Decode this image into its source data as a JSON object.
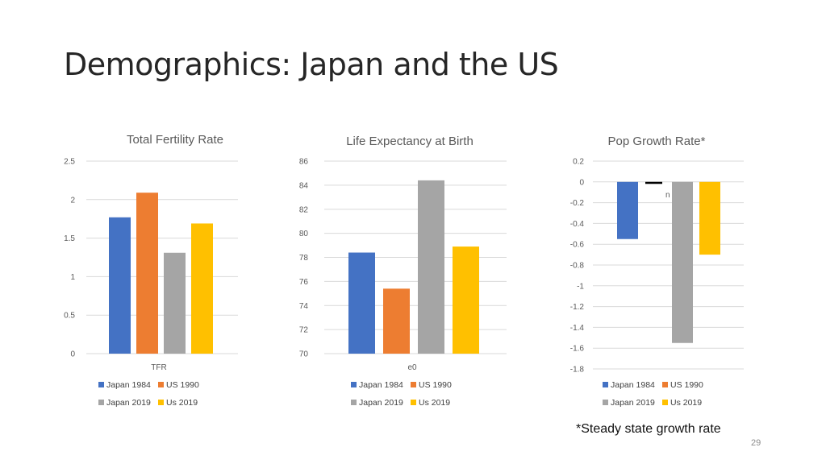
{
  "slide": {
    "title": "Demographics: Japan and the US",
    "footnote": "*Steady state growth rate",
    "page_number": "29"
  },
  "chart_data": [
    {
      "type": "bar",
      "title": "Total Fertility Rate",
      "categories": [
        "TFR"
      ],
      "series": [
        {
          "name": "Japan 1984",
          "values": [
            1.77
          ],
          "color": "#4472C4"
        },
        {
          "name": "US 1990",
          "values": [
            2.09
          ],
          "color": "#ED7D31"
        },
        {
          "name": "Japan 2019",
          "values": [
            1.31
          ],
          "color": "#A5A5A5"
        },
        {
          "name": "Us 2019",
          "values": [
            1.69
          ],
          "color": "#FFC000"
        }
      ],
      "ylim": [
        0,
        2.5
      ],
      "yticks": [
        "0",
        "0.5",
        "1",
        "1.5",
        "2",
        "2.5"
      ],
      "grid": true,
      "legend": "bottom"
    },
    {
      "type": "bar",
      "title": "Life Expectancy at Birth",
      "categories": [
        "e0"
      ],
      "series": [
        {
          "name": "Japan 1984",
          "values": [
            78.4
          ],
          "color": "#4472C4"
        },
        {
          "name": "US 1990",
          "values": [
            75.4
          ],
          "color": "#ED7D31"
        },
        {
          "name": "Japan 2019",
          "values": [
            84.4
          ],
          "color": "#A5A5A5"
        },
        {
          "name": "Us 2019",
          "values": [
            78.9
          ],
          "color": "#FFC000"
        }
      ],
      "ylim": [
        70,
        86
      ],
      "yticks": [
        "70",
        "72",
        "74",
        "76",
        "78",
        "80",
        "82",
        "84",
        "86"
      ],
      "grid": true,
      "legend": "bottom"
    },
    {
      "type": "bar",
      "title": "Pop Growth Rate*",
      "categories": [
        ""
      ],
      "series": [
        {
          "name": "Japan 1984",
          "values": [
            -0.55
          ],
          "color": "#4472C4"
        },
        {
          "name": "US 1990",
          "values": [
            0.0
          ],
          "color": "#ED7D31"
        },
        {
          "name": "Japan 2019",
          "values": [
            -1.55
          ],
          "color": "#A5A5A5"
        },
        {
          "name": "Us 2019",
          "values": [
            -0.7
          ],
          "color": "#FFC000"
        }
      ],
      "ylim": [
        -1.8,
        0.2
      ],
      "yticks": [
        "-1.8",
        "-1.6",
        "-1.4",
        "-1.2",
        "-1",
        "-0.8",
        "-0.6",
        "-0.4",
        "-0.2",
        "0",
        "0.2"
      ],
      "grid": true,
      "legend": "bottom",
      "annotations": [
        "n"
      ]
    }
  ]
}
